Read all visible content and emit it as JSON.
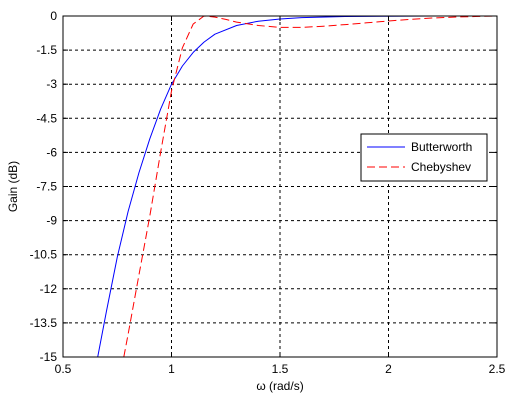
{
  "chart_data": {
    "type": "line",
    "xlabel": "ω (rad/s)",
    "ylabel": "Gain (dB)",
    "xlim": [
      0.5,
      2.5
    ],
    "ylim": [
      -15,
      0
    ],
    "x_ticks": [
      0.5,
      1,
      1.5,
      2,
      2.5
    ],
    "x_tick_labels": [
      "0.5",
      "1",
      "1.5",
      "2",
      "2.5"
    ],
    "y_ticks": [
      0,
      -1.5,
      -3,
      -4.5,
      -6,
      -7.5,
      -9,
      -10.5,
      -12,
      -13.5,
      -15
    ],
    "y_tick_labels": [
      "0",
      "-1.5",
      "-3",
      "-4.5",
      "-6",
      "-7.5",
      "-9",
      "-10.5",
      "-12",
      "-13.5",
      "-15"
    ],
    "grid": true,
    "grid_style": "dashed",
    "legend_position": "right-center",
    "series": [
      {
        "name": "Butterworth",
        "color": "#0000ff",
        "line_style": "solid",
        "x": [
          0.66,
          0.7,
          0.75,
          0.8,
          0.85,
          0.9,
          0.95,
          1.0,
          1.05,
          1.1,
          1.15,
          1.2,
          1.3,
          1.4,
          1.5,
          1.6,
          1.8,
          2.0,
          2.2,
          2.5
        ],
        "y": [
          -15.0,
          -13.0,
          -10.6,
          -8.6,
          -6.9,
          -5.4,
          -4.1,
          -3.0,
          -2.2,
          -1.6,
          -1.15,
          -0.8,
          -0.42,
          -0.23,
          -0.13,
          -0.07,
          -0.02,
          -0.01,
          0.0,
          0.0
        ]
      },
      {
        "name": "Chebyshev",
        "color": "#ff0000",
        "line_style": "dashed",
        "x": [
          0.78,
          0.8,
          0.85,
          0.9,
          0.95,
          1.0,
          1.05,
          1.1,
          1.15,
          1.2,
          1.25,
          1.3,
          1.4,
          1.5,
          1.6,
          1.7,
          1.8,
          1.9,
          2.0,
          2.1,
          2.2,
          2.3,
          2.4,
          2.5
        ],
        "y": [
          -15.0,
          -14.0,
          -11.4,
          -8.8,
          -6.0,
          -3.3,
          -1.4,
          -0.35,
          0.0,
          -0.05,
          -0.15,
          -0.27,
          -0.42,
          -0.5,
          -0.5,
          -0.45,
          -0.38,
          -0.3,
          -0.22,
          -0.15,
          -0.09,
          -0.05,
          -0.02,
          0.0
        ]
      }
    ]
  }
}
